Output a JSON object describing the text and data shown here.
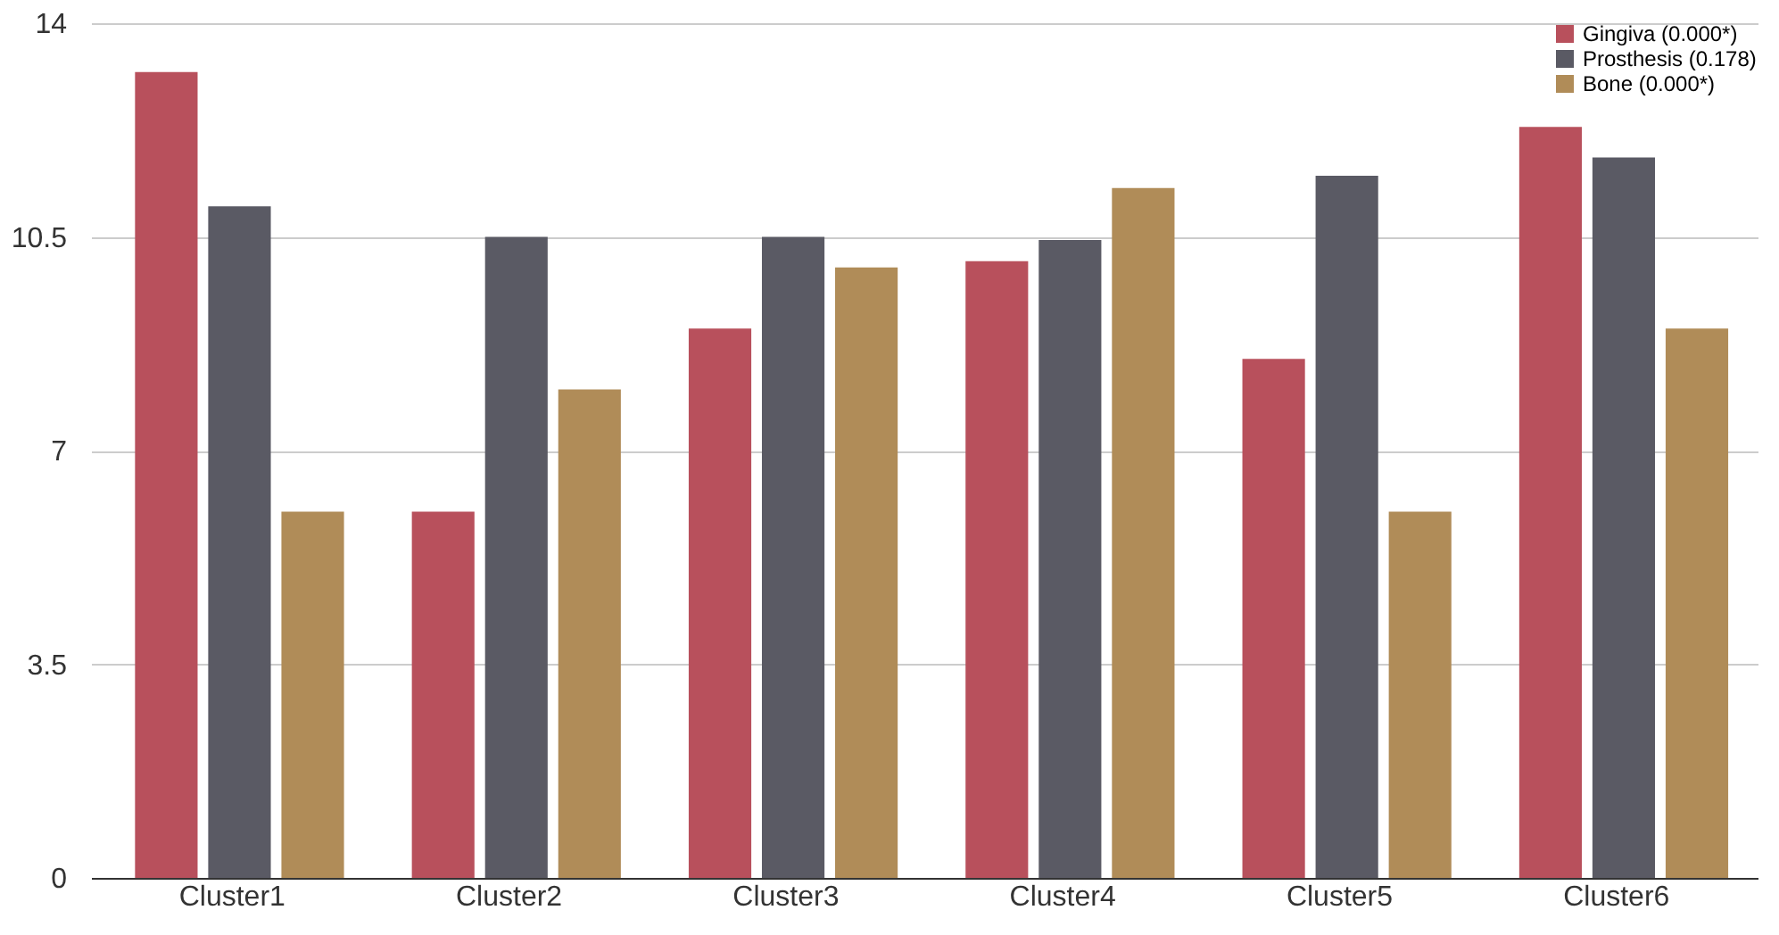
{
  "chart_data": {
    "type": "bar",
    "categories": [
      "Cluster1",
      "Cluster2",
      "Cluster3",
      "Cluster4",
      "Cluster5",
      "Cluster6"
    ],
    "series": [
      {
        "name": "Gingiva (0.000*)",
        "color": "#b8505c",
        "values": [
          13.2,
          6.0,
          9.0,
          10.1,
          8.5,
          12.3
        ]
      },
      {
        "name": "Prosthesis (0.178)",
        "color": "#5a5a64",
        "values": [
          11.0,
          10.5,
          10.5,
          10.45,
          11.5,
          11.8
        ]
      },
      {
        "name": "Bone (0.000*)",
        "color": "#b08c58",
        "values": [
          6.0,
          8.0,
          10.0,
          11.3,
          6.0,
          9.0
        ]
      }
    ],
    "ylim": [
      0,
      14
    ],
    "yticks": [
      0,
      3.5,
      7,
      10.5,
      14
    ],
    "grid": "y",
    "legend": "top right"
  }
}
